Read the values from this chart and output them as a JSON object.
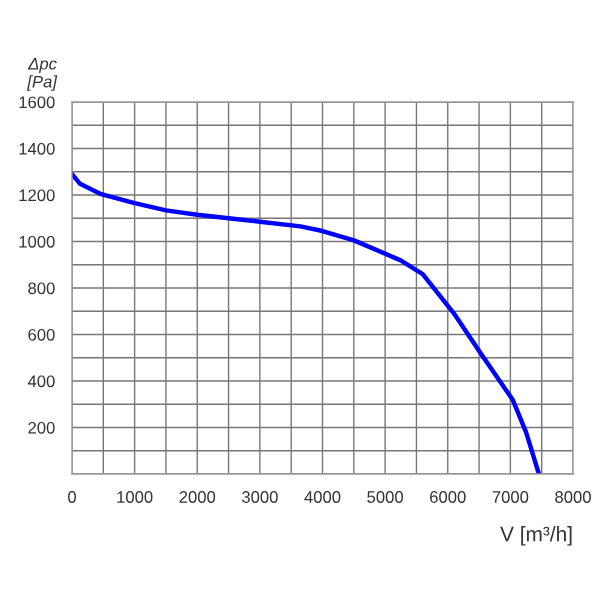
{
  "chart_data": {
    "type": "line",
    "xlabel": "V [m³/h]",
    "ylabel": "Δpc\n[Pa]",
    "x": [
      0,
      128,
      450,
      1000,
      1500,
      2000,
      2500,
      3000,
      3648,
      4000,
      4502,
      5248,
      5600,
      6100,
      6528,
      7040,
      7250,
      7456
    ],
    "series": [
      {
        "color": "#0000ff",
        "values": [
          1290,
          1248,
          1205,
          1165,
          1134,
          1115,
          1100,
          1085,
          1065,
          1045,
          1005,
          919,
          860,
          690,
          518,
          318,
          180,
          0
        ]
      }
    ],
    "xlim": [
      0,
      8000
    ],
    "ylim": [
      0,
      1600
    ],
    "xticks": [
      0,
      {
        "value": 500,
        "label": null
      },
      1000,
      {
        "value": 1500,
        "label": null
      },
      2000,
      {
        "value": 2500,
        "label": null
      },
      3000,
      {
        "value": 3500,
        "label": null
      },
      4000,
      {
        "value": 4500,
        "label": null
      },
      5000,
      {
        "value": 5500,
        "label": null
      },
      6000,
      {
        "value": 6500,
        "label": null
      },
      7000,
      {
        "value": 7500,
        "label": null
      },
      8000
    ],
    "yticks": [
      {
        "value": 0,
        "label": null
      },
      {
        "value": 100,
        "label": null
      },
      200,
      {
        "value": 300,
        "label": null
      },
      400,
      {
        "value": 500,
        "label": null
      },
      600,
      {
        "value": 700,
        "label": null
      },
      800,
      {
        "value": 900,
        "label": null
      },
      1000,
      {
        "value": 1100,
        "label": null
      },
      1200,
      {
        "value": 1300,
        "label": null
      },
      1400,
      {
        "value": 1500,
        "label": null
      },
      1600
    ],
    "grid": true,
    "marker": "none",
    "line_style": "solid",
    "legend": false
  }
}
